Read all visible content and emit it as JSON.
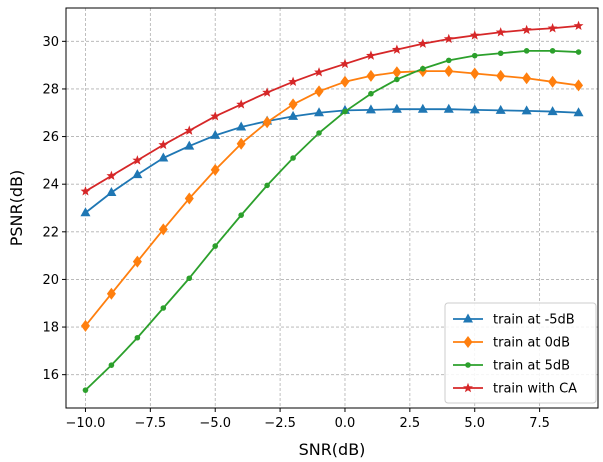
{
  "chart_data": {
    "type": "line",
    "xlabel": "SNR(dB)",
    "ylabel": "PSNR(dB)",
    "xlim": [
      -10.75,
      9.75
    ],
    "ylim": [
      14.6,
      31.4
    ],
    "xticks": [
      -10.0,
      -7.5,
      -5.0,
      -2.5,
      0.0,
      2.5,
      5.0,
      7.5
    ],
    "xtick_labels": [
      "−10.0",
      "−7.5",
      "−5.0",
      "−2.5",
      "0.0",
      "2.5",
      "5.0",
      "7.5"
    ],
    "yticks": [
      16,
      18,
      20,
      22,
      24,
      26,
      28,
      30
    ],
    "ytick_labels": [
      "16",
      "18",
      "20",
      "22",
      "24",
      "26",
      "28",
      "30"
    ],
    "grid": true,
    "legend_position": "lower-right",
    "x": [
      -10,
      -9,
      -8,
      -7,
      -6,
      -5,
      -4,
      -3,
      -2,
      -1,
      0,
      1,
      2,
      3,
      4,
      5,
      6,
      7,
      8,
      9
    ],
    "series": [
      {
        "name": "train at -5dB",
        "color": "#1f77b4",
        "marker": "triangle",
        "values": [
          22.8,
          23.65,
          24.4,
          25.1,
          25.6,
          26.05,
          26.4,
          26.65,
          26.85,
          27.0,
          27.1,
          27.12,
          27.15,
          27.15,
          27.15,
          27.12,
          27.1,
          27.08,
          27.05,
          27.0
        ]
      },
      {
        "name": "train at 0dB",
        "color": "#ff7f0e",
        "marker": "diamond",
        "values": [
          18.05,
          19.4,
          20.75,
          22.1,
          23.4,
          24.6,
          25.7,
          26.6,
          27.35,
          27.9,
          28.3,
          28.55,
          28.7,
          28.75,
          28.75,
          28.65,
          28.55,
          28.45,
          28.3,
          28.15
        ]
      },
      {
        "name": "train at 5dB",
        "color": "#2ca02c",
        "marker": "circle",
        "values": [
          15.35,
          16.4,
          17.55,
          18.8,
          20.05,
          21.4,
          22.7,
          23.95,
          25.1,
          26.15,
          27.05,
          27.8,
          28.4,
          28.85,
          29.2,
          29.4,
          29.5,
          29.6,
          29.6,
          29.55
        ]
      },
      {
        "name": "train with CA",
        "color": "#d62728",
        "marker": "star",
        "values": [
          23.7,
          24.35,
          25.0,
          25.65,
          26.25,
          26.85,
          27.35,
          27.85,
          28.3,
          28.7,
          29.05,
          29.4,
          29.65,
          29.9,
          30.1,
          30.25,
          30.38,
          30.48,
          30.55,
          30.65
        ]
      }
    ]
  }
}
